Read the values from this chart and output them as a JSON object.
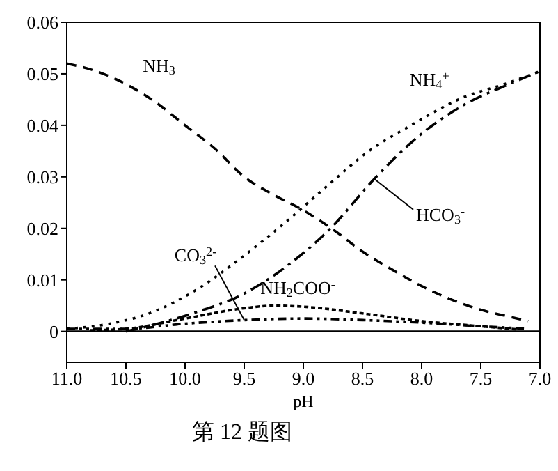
{
  "chart_data": {
    "type": "line",
    "xlabel": "pH",
    "annotations": [
      "第 12 题图"
    ],
    "xlim": [
      11,
      7
    ],
    "xticks": [
      {
        "value": 11,
        "label": "11.0"
      },
      {
        "value": 10.5,
        "label": "10.5"
      },
      {
        "value": 10,
        "label": "10.0"
      },
      {
        "value": 9.5,
        "label": "9.5"
      },
      {
        "value": 9,
        "label": "9.0"
      },
      {
        "value": 8.5,
        "label": "8.5"
      },
      {
        "value": 8,
        "label": "8.0"
      },
      {
        "value": 7.5,
        "label": "7.5"
      },
      {
        "value": 7,
        "label": "7.0"
      }
    ],
    "ylim": [
      -0.006,
      0.06
    ],
    "yticks": [
      0,
      0.01,
      0.02,
      0.03,
      0.04,
      0.05,
      0.06
    ],
    "grid": false,
    "legend": false,
    "marker": "none",
    "ref_lines": [
      {
        "axis": "y",
        "value": 0,
        "color": "#000000",
        "line_style": "solid"
      }
    ],
    "series": [
      {
        "name": "NH$_{3}$",
        "color": "#000000",
        "line_style": "dashed",
        "x": [
          11,
          10.75,
          10.5,
          10.25,
          10,
          9.75,
          9.5,
          9.25,
          9,
          8.75,
          8.5,
          8.25,
          8,
          7.75,
          7.5,
          7.25,
          7.1
        ],
        "values": [
          0.052,
          0.0505,
          0.048,
          0.0445,
          0.04,
          0.0355,
          0.03,
          0.0265,
          0.0235,
          0.0198,
          0.0155,
          0.012,
          0.0088,
          0.0062,
          0.0042,
          0.0028,
          0.002
        ]
      },
      {
        "name": "NH$_{4}$$^{+}$",
        "color": "#000000",
        "line_style": "dotted",
        "x": [
          11,
          10.66,
          10.28,
          9.91,
          9.53,
          9.15,
          8.77,
          8.47,
          8.09,
          7.64,
          7.3,
          7
        ],
        "values": [
          0.0005,
          0.0014,
          0.0037,
          0.008,
          0.0142,
          0.0212,
          0.0288,
          0.0346,
          0.04,
          0.0455,
          0.048,
          0.0505
        ]
      },
      {
        "name": "HCO$_{3}$$^{-}$",
        "color": "#000000",
        "line_style": "dashed",
        "x": [
          10.5,
          10.28,
          9.91,
          9.53,
          9.15,
          8.77,
          8.4,
          8.02,
          7.64,
          7.26,
          7
        ],
        "values": [
          0,
          0.0012,
          0.0037,
          0.007,
          0.0125,
          0.02,
          0.0296,
          0.038,
          0.044,
          0.048,
          0.0505
        ]
      },
      {
        "name": "NH$_{2}$COO$^{-}$",
        "color": "#000000",
        "line_style": "dotted",
        "x": [
          10.8,
          10.5,
          10,
          9.5,
          9.25,
          9,
          8.5,
          8,
          7.5,
          7.2
        ],
        "values": [
          0.0002,
          0.0005,
          0.0025,
          0.0045,
          0.005,
          0.0048,
          0.0035,
          0.002,
          0.001,
          0.0004
        ]
      },
      {
        "name": "CO$_{3}$$^{2-}$",
        "color": "#000000",
        "line_style": "dashed",
        "x": [
          11,
          10.5,
          10,
          9.5,
          9,
          8.5,
          8,
          7.5,
          7.1
        ],
        "values": [
          0.0005,
          0.0005,
          0.0015,
          0.0022,
          0.0025,
          0.0022,
          0.0017,
          0.001,
          0.0005
        ]
      }
    ]
  }
}
